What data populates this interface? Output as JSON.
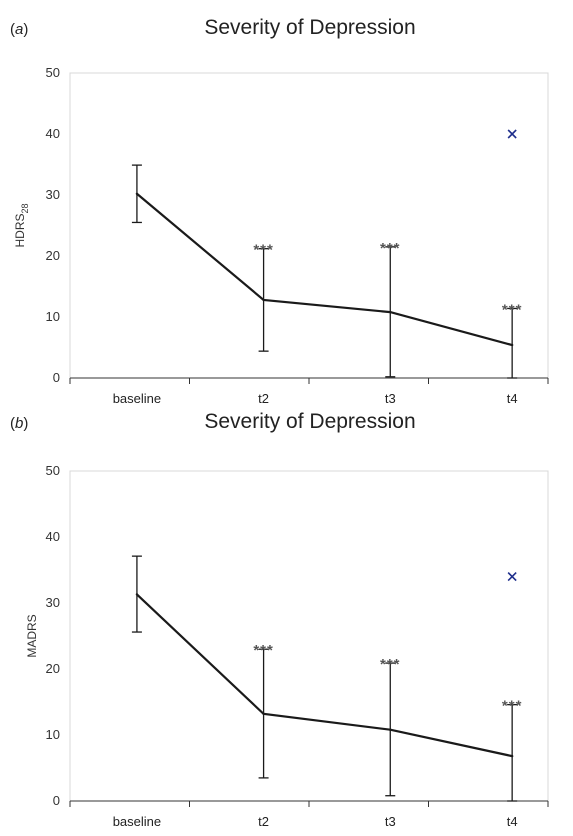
{
  "chart_data": [
    {
      "type": "line",
      "panel_label": "(a)",
      "title": "Severity of Depression",
      "ylabel": "HDRS28",
      "ylabel_main": "HDRS",
      "ylabel_sub": "28",
      "categories": [
        "baseline",
        "t2",
        "t3",
        "t4"
      ],
      "ylim": [
        0,
        50
      ],
      "yticks": [
        0,
        10,
        20,
        30,
        40,
        50
      ],
      "series": [
        {
          "values": [
            30.2,
            12.8,
            10.8,
            5.4
          ],
          "error_upper": [
            34.9,
            21.2,
            21.5,
            11.4
          ],
          "error_lower": [
            25.5,
            4.4,
            0.2,
            0
          ],
          "color": "#1a1a1a"
        }
      ],
      "significance": [
        "",
        "***",
        "***",
        "***"
      ],
      "outlier": {
        "category": "t4",
        "value": 40,
        "marker": "×",
        "color": "#1f2f8c"
      },
      "grid": false,
      "legend": "none"
    },
    {
      "type": "line",
      "panel_label": "(b)",
      "title": "Severity of Depression",
      "ylabel": "MADRS",
      "ylabel_main": "MADRS",
      "ylabel_sub": "",
      "categories": [
        "baseline",
        "t2",
        "t3",
        "t4"
      ],
      "ylim": [
        0,
        50
      ],
      "yticks": [
        0,
        10,
        20,
        30,
        40,
        50
      ],
      "series": [
        {
          "values": [
            31.3,
            13.2,
            10.8,
            6.8
          ],
          "error_upper": [
            37.1,
            23.0,
            20.9,
            14.6
          ],
          "error_lower": [
            25.6,
            3.5,
            0.8,
            0
          ],
          "color": "#1a1a1a"
        }
      ],
      "significance": [
        "",
        "***",
        "***",
        "***"
      ],
      "outlier": {
        "category": "t4",
        "value": 34,
        "marker": "×",
        "color": "#1f2f8c"
      },
      "grid": false,
      "legend": "none"
    }
  ]
}
